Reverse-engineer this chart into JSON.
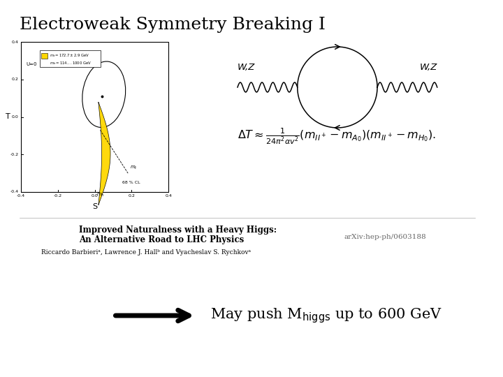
{
  "title": "Electroweak Symmetry Breaking I",
  "bg_color": "#ffffff",
  "title_fontsize": 18,
  "paper_title_line1": "Improved Naturalness with a Heavy Higgs:",
  "paper_title_line2": "An Alternative Road to LHC Physics",
  "paper_authors": "Riccardo Barbieriᵃ, Lawrence J. Hallᵇ and Vyacheslav S. Rychkovᵃ",
  "arxiv": "arXiv:hep-ph/0603188",
  "wz_label_left": "W,Z",
  "wz_label_right": "W,Z",
  "formula": "$\\Delta T \\approx \\frac{1}{24\\pi^2\\alpha v^2}(m_{II^+}-m_{A_0})(m_{II^+}-m_{H_0}).$",
  "arrow_bottom_text": "May push M$_{\\rm higgs}$ up to 600 GeV"
}
